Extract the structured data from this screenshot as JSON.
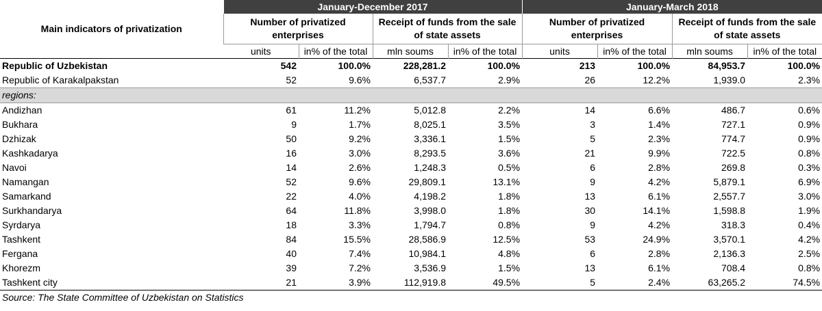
{
  "header": {
    "title": "Main indicators of privatization",
    "period1": "January-December 2017",
    "period2": "January-March 2018",
    "group_enterprises": "Number of privatized enterprises",
    "group_funds": "Receipt of funds from the sale of state assets",
    "units": "units",
    "pct_total": "in% of the total",
    "mln_soums": "mln soums"
  },
  "regions_label": "regions:",
  "source": "Source: The State Committee of Uzbekistan on Statistics",
  "rows": [
    {
      "name": "Republic of Uzbekistan",
      "v": [
        "542",
        "100.0%",
        "228,281.2",
        "100.0%",
        "213",
        "100.0%",
        "84,953.7",
        "100.0%"
      ]
    },
    {
      "name": "Republic of Karakalpakstan",
      "v": [
        "52",
        "9.6%",
        "6,537.7",
        "2.9%",
        "26",
        "12.2%",
        "1,939.0",
        "2.3%"
      ]
    },
    {
      "name": "Andizhan",
      "v": [
        "61",
        "11.2%",
        "5,012.8",
        "2.2%",
        "14",
        "6.6%",
        "486.7",
        "0.6%"
      ]
    },
    {
      "name": "Bukhara",
      "v": [
        "9",
        "1.7%",
        "8,025.1",
        "3.5%",
        "3",
        "1.4%",
        "727.1",
        "0.9%"
      ]
    },
    {
      "name": "Dzhizak",
      "v": [
        "50",
        "9.2%",
        "3,336.1",
        "1.5%",
        "5",
        "2.3%",
        "774.7",
        "0.9%"
      ]
    },
    {
      "name": "Kashkadarya",
      "v": [
        "16",
        "3.0%",
        "8,293.5",
        "3.6%",
        "21",
        "9.9%",
        "722.5",
        "0.8%"
      ]
    },
    {
      "name": "Navoi",
      "v": [
        "14",
        "2.6%",
        "1,248.3",
        "0.5%",
        "6",
        "2.8%",
        "269.8",
        "0.3%"
      ]
    },
    {
      "name": "Namangan",
      "v": [
        "52",
        "9.6%",
        "29,809.1",
        "13.1%",
        "9",
        "4.2%",
        "5,879.1",
        "6.9%"
      ]
    },
    {
      "name": "Samarkand",
      "v": [
        "22",
        "4.0%",
        "4,198.2",
        "1.8%",
        "13",
        "6.1%",
        "2,557.7",
        "3.0%"
      ]
    },
    {
      "name": "Surkhandarya",
      "v": [
        "64",
        "11.8%",
        "3,998.0",
        "1.8%",
        "30",
        "14.1%",
        "1,598.8",
        "1.9%"
      ]
    },
    {
      "name": "Syrdarya",
      "v": [
        "18",
        "3.3%",
        "1,794.7",
        "0.8%",
        "9",
        "4.2%",
        "318.3",
        "0.4%"
      ]
    },
    {
      "name": "Tashkent",
      "v": [
        "84",
        "15.5%",
        "28,586.9",
        "12.5%",
        "53",
        "24.9%",
        "3,570.1",
        "4.2%"
      ]
    },
    {
      "name": "Fergana",
      "v": [
        "40",
        "7.4%",
        "10,984.1",
        "4.8%",
        "6",
        "2.8%",
        "2,136.3",
        "2.5%"
      ]
    },
    {
      "name": "Khorezm",
      "v": [
        "39",
        "7.2%",
        "3,536.9",
        "1.5%",
        "13",
        "6.1%",
        "708.4",
        "0.8%"
      ]
    },
    {
      "name": "Tashkent city",
      "v": [
        "21",
        "3.9%",
        "112,919.8",
        "49.5%",
        "5",
        "2.4%",
        "63,265.2",
        "74.5%"
      ]
    }
  ]
}
